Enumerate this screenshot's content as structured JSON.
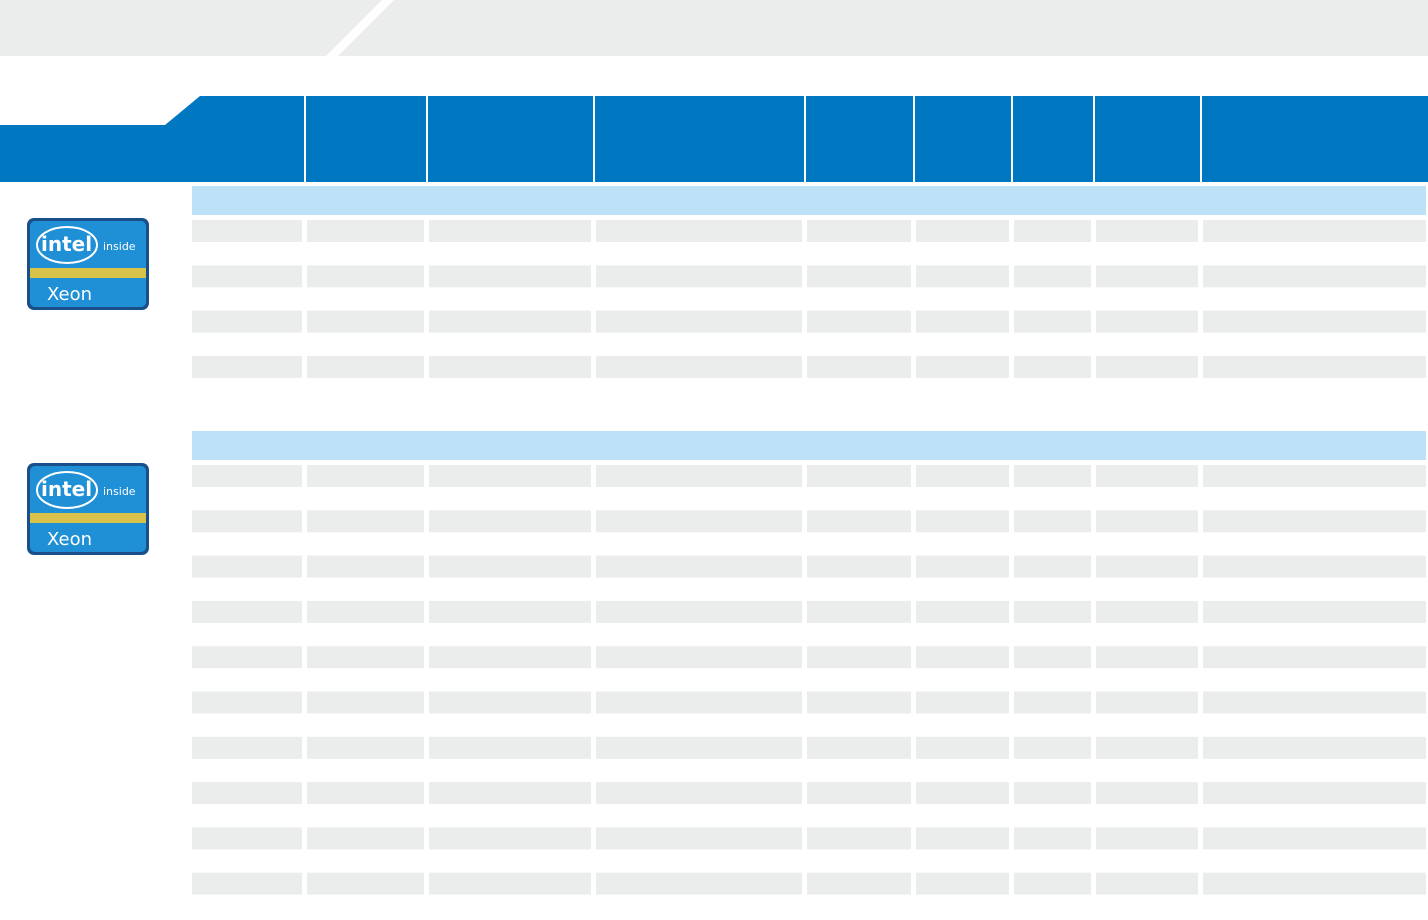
{
  "sections": [
    {
      "logo": {
        "brand": "intel",
        "badge": "inside",
        "product": "Xeon"
      }
    },
    {
      "logo": {
        "brand": "intel",
        "badge": "inside",
        "product": "Xeon"
      }
    }
  ]
}
